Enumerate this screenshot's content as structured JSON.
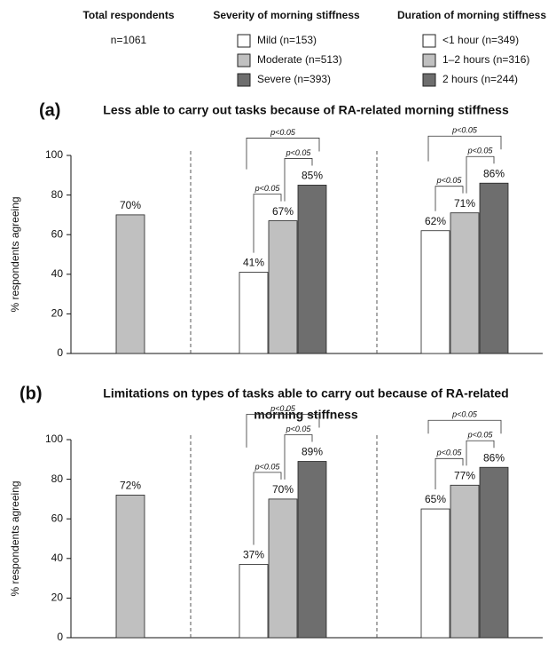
{
  "legend": {
    "groups": [
      {
        "title": "Total respondents",
        "items": [
          {
            "label": "n=1061"
          }
        ]
      },
      {
        "title": "Severity of morning stiffness",
        "items": [
          {
            "label": "Mild (n=153)",
            "color": "#ffffff"
          },
          {
            "label": "Moderate (n=513)",
            "color": "#c0c0c0"
          },
          {
            "label": "Severe (n=393)",
            "color": "#6e6e6e"
          }
        ]
      },
      {
        "title": "Duration of morning stiffness",
        "items": [
          {
            "label": "<1 hour (n=349)",
            "color": "#ffffff"
          },
          {
            "label": "1–2 hours (n=316)",
            "color": "#c0c0c0"
          },
          {
            "label": "2 hours (n=244)",
            "color": "#6e6e6e"
          }
        ]
      }
    ]
  },
  "chart_data": [
    {
      "type": "bar",
      "letter": "(a)",
      "title": [
        "Less able to carry out tasks because of RA-related morning stiffness"
      ],
      "ylabel": "% respondents agreeing",
      "ylim": [
        0,
        100
      ],
      "yticks": [
        0,
        20,
        40,
        60,
        80,
        100
      ],
      "groups": [
        {
          "values": [
            70
          ],
          "value_labels": [
            "70%"
          ],
          "colors": [
            "#c0c0c0"
          ],
          "comparisons": []
        },
        {
          "values": [
            41,
            67,
            85
          ],
          "value_labels": [
            "41%",
            "67%",
            "85%"
          ],
          "colors": [
            "#ffffff",
            "#c0c0c0",
            "#6e6e6e"
          ],
          "comparisons": [
            "p<0.05",
            "p<0.05",
            "p<0.05"
          ]
        },
        {
          "values": [
            62,
            71,
            86
          ],
          "value_labels": [
            "62%",
            "71%",
            "86%"
          ],
          "colors": [
            "#ffffff",
            "#c0c0c0",
            "#6e6e6e"
          ],
          "comparisons": [
            "p<0.05",
            "p<0.05",
            "p<0.05"
          ]
        }
      ]
    },
    {
      "type": "bar",
      "letter": "(b)",
      "title": [
        "Limitations on types of tasks able to carry out because of RA-related",
        "morning stiffness"
      ],
      "ylabel": "% respondents agreeing",
      "ylim": [
        0,
        100
      ],
      "yticks": [
        0,
        20,
        40,
        60,
        80,
        100
      ],
      "groups": [
        {
          "values": [
            72
          ],
          "value_labels": [
            "72%"
          ],
          "colors": [
            "#c0c0c0"
          ],
          "comparisons": []
        },
        {
          "values": [
            37,
            70,
            89
          ],
          "value_labels": [
            "37%",
            "70%",
            "89%"
          ],
          "colors": [
            "#ffffff",
            "#c0c0c0",
            "#6e6e6e"
          ],
          "comparisons": [
            "p<0.05",
            "p<0.05",
            "p<0.05"
          ]
        },
        {
          "values": [
            65,
            77,
            86
          ],
          "value_labels": [
            "65%",
            "77%",
            "86%"
          ],
          "colors": [
            "#ffffff",
            "#c0c0c0",
            "#6e6e6e"
          ],
          "comparisons": [
            "p<0.05",
            "p<0.05",
            "p<0.05"
          ]
        }
      ]
    }
  ]
}
